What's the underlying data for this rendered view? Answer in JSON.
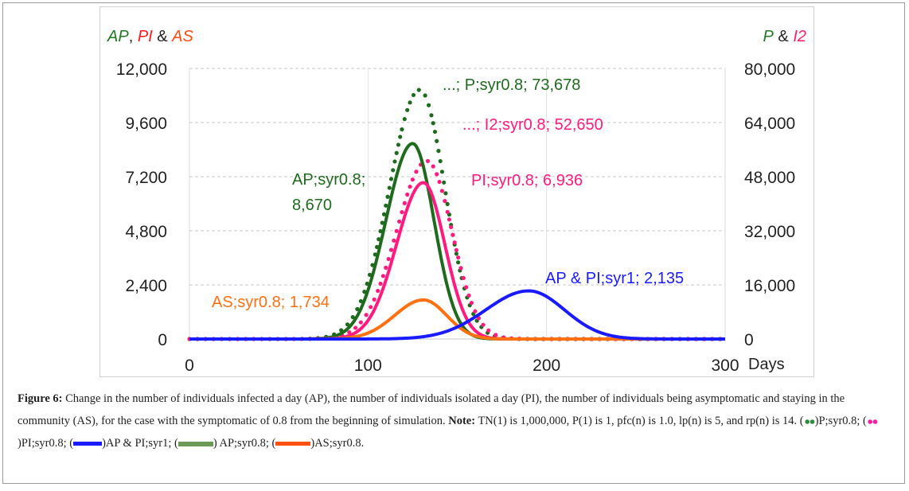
{
  "chart_data": {
    "type": "line",
    "left_axis_title": {
      "parts": [
        {
          "text": "AP",
          "color": "#1e7a1e",
          "italic": true
        },
        {
          "text": ", ",
          "color": "#222",
          "italic": false
        },
        {
          "text": "PI",
          "color": "#ff1a1a",
          "italic": true
        },
        {
          "text": " & ",
          "color": "#222",
          "italic": false
        },
        {
          "text": "AS",
          "color": "#ff4a10",
          "italic": true
        }
      ]
    },
    "right_axis_title": {
      "parts": [
        {
          "text": "P",
          "color": "#1e7a1e",
          "italic": true
        },
        {
          "text": " & ",
          "color": "#222",
          "italic": false
        },
        {
          "text": "I2",
          "color": "#ff1a6e",
          "italic": true
        }
      ]
    },
    "xlabel": "Days",
    "xlim": [
      0,
      300
    ],
    "xticks": [
      "0",
      "100",
      "200",
      "300"
    ],
    "ylim_left": [
      0,
      12000
    ],
    "yticks_left": [
      "0",
      "2,400",
      "4,800",
      "7,200",
      "9,600",
      "12,000"
    ],
    "ylim_right": [
      0,
      80000
    ],
    "yticks_right": [
      "0",
      "16,000",
      "32,000",
      "48,000",
      "64,000",
      "80,000"
    ],
    "grid": "horizontal dashed",
    "series": [
      {
        "name": "P;syr0.8",
        "axis": "right",
        "style": "dotted",
        "color": "#1e6b1e",
        "peak_value": 73678,
        "peak_day": 129,
        "sigma_left": 17,
        "sigma_right": 14,
        "label": "...; P;syr0.8; 73,678"
      },
      {
        "name": "I2;syr0.8",
        "axis": "right",
        "style": "dotted",
        "color": "#ff1a80",
        "peak_value": 52650,
        "peak_day": 133,
        "sigma_left": 17,
        "sigma_right": 14,
        "label": "...; I2;syr0.8; 52,650"
      },
      {
        "name": "AP;syr0.8",
        "axis": "left",
        "style": "solid",
        "color": "#1e6b1e",
        "peak_value": 8670,
        "peak_day": 125,
        "sigma_left": 15,
        "sigma_right": 12,
        "label": "AP;syr0.8;",
        "label2": "8,670"
      },
      {
        "name": "PI;syr0.8",
        "axis": "left",
        "style": "solid",
        "color": "#ff1a80",
        "peak_value": 6936,
        "peak_day": 131,
        "sigma_left": 15,
        "sigma_right": 12,
        "label": "PI;syr0.8; 6,936"
      },
      {
        "name": "AS;syr0.8",
        "axis": "left",
        "style": "solid",
        "color": "#ff7010",
        "peak_value": 1734,
        "peak_day": 131,
        "sigma_left": 16,
        "sigma_right": 13,
        "label": "AS;syr0.8; 1,734"
      },
      {
        "name": "AP & PI;syr1",
        "axis": "left",
        "style": "solid",
        "color": "#1a1aff",
        "peak_value": 2135,
        "peak_day": 190,
        "sigma_left": 24,
        "sigma_right": 20,
        "label": "AP & PI;syr1; 2,135"
      }
    ]
  },
  "caption": {
    "figure_label": "Figure 6:",
    "text1": " Change in the number of individuals infected a day (AP), the number of individuals isolated a day (PI), the number of individuals being asymptomatic and staying in the community (AS), for the case with the symptomatic of 0.8 from the beginning of simulation. ",
    "note_label": "Note:",
    "text2": " TN(1) is 1,000,000, P(1) is 1, pfc(n) is 1.0, lp(n) is 5, and rp(n) is 14. (",
    "leg1": ")P;syr0.8; (",
    "leg2": ")PI;syr0.8; (",
    "leg3": ")AP & PI;syr1;  (",
    "leg4": ") AP;syr0.8; (",
    "leg5": ")AS;syr0.8.",
    "swatch_colors": {
      "p": "#2e8b3e",
      "i2": "#ff1a9a",
      "blue": "#1a1aff",
      "green": "#6a9a55",
      "orange": "#ff5010"
    }
  }
}
